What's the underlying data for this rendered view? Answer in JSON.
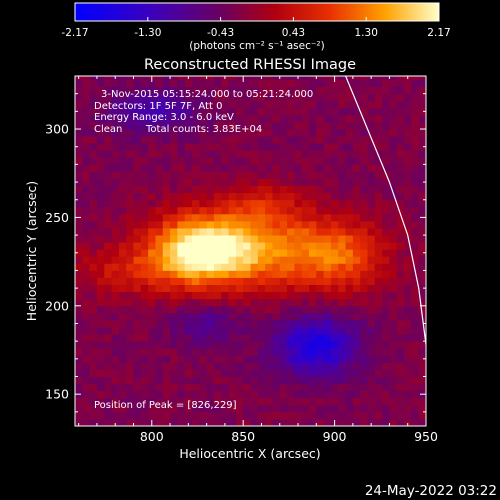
{
  "colorbar": {
    "ticks": [
      "-2.17",
      "-1.30",
      "-0.43",
      "0.43",
      "1.30",
      "2.17"
    ],
    "range": [
      -2.17,
      2.17
    ],
    "units": "(photons cm⁻² s⁻¹ asec⁻²)"
  },
  "title": "Reconstructed RHESSI Image",
  "annotations": {
    "time": "3-Nov-2015 05:15:24.000 to 05:21:24.000",
    "detectors": "Detectors: 1F 5F 7F, Att 0",
    "energy": "Energy Range: 3.0 - 6.0 keV",
    "algorithm": "Clean",
    "counts": "Total counts: 3.83E+04",
    "peak": "Position of Peak = [826,229]"
  },
  "footer_date": "24-May-2022 03:22",
  "chart_data": {
    "type": "heatmap",
    "xlabel": "Heliocentric X (arcsec)",
    "ylabel": "Heliocentric Y (arcsec)",
    "xlim": [
      758,
      950
    ],
    "ylim": [
      132,
      330
    ],
    "xticks": [
      800,
      850,
      900,
      950
    ],
    "yticks": [
      150,
      200,
      250,
      300
    ],
    "peak": [
      826,
      229
    ],
    "limb_curve": [
      [
        906,
        330
      ],
      [
        918,
        300
      ],
      [
        930,
        270
      ],
      [
        940,
        240
      ],
      [
        946,
        210
      ],
      [
        950,
        178
      ]
    ],
    "sources": [
      {
        "x": 826,
        "y": 232,
        "sx": 20,
        "sy": 14,
        "amp": 2.17
      },
      {
        "x": 865,
        "y": 232,
        "sx": 30,
        "sy": 16,
        "amp": 1.4
      },
      {
        "x": 905,
        "y": 228,
        "sx": 18,
        "sy": 14,
        "amp": 0.9
      },
      {
        "x": 785,
        "y": 220,
        "sx": 22,
        "sy": 10,
        "amp": 0.7
      },
      {
        "x": 860,
        "y": 258,
        "sx": 14,
        "sy": 8,
        "amp": 0.6
      }
    ],
    "negatives": [
      {
        "x": 890,
        "y": 178,
        "sx": 16,
        "sy": 12,
        "amp": -1.5
      },
      {
        "x": 800,
        "y": 310,
        "sx": 18,
        "sy": 8,
        "amp": -0.9
      },
      {
        "x": 830,
        "y": 190,
        "sx": 14,
        "sy": 8,
        "amp": -0.6
      }
    ]
  }
}
